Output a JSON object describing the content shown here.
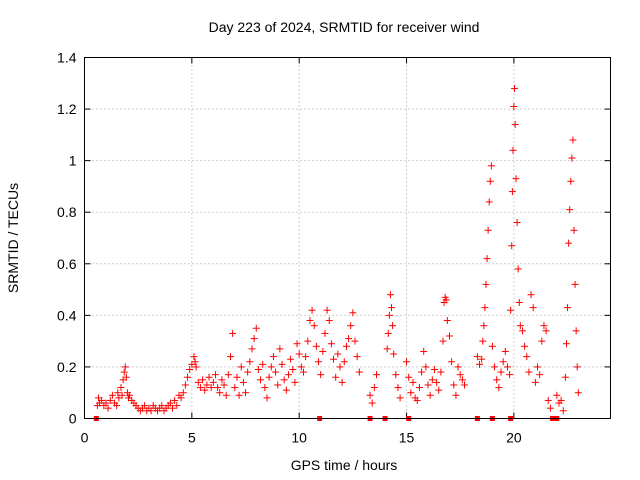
{
  "chart_data": {
    "type": "scatter",
    "title": "Day 223 of 2024, SRMTID for receiver wind",
    "xlabel": "GPS time / hours",
    "ylabel": "SRMTID / TECUs",
    "xlim": [
      0,
      24.5
    ],
    "ylim": [
      0,
      1.4
    ],
    "xticks": [
      0,
      5,
      10,
      15,
      20
    ],
    "xtick_labels": [
      "0",
      "5",
      "10",
      "15",
      "20"
    ],
    "yticks": [
      0,
      0.2,
      0.4,
      0.6,
      0.8,
      1.0,
      1.2,
      1.4
    ],
    "ytick_labels": [
      "0",
      "0.2",
      "0.4",
      "0.6",
      "0.8",
      "1",
      "1.2",
      "1.4"
    ],
    "grid": true,
    "marker": "plus",
    "color": "#ff0000",
    "series": [
      {
        "name": "SRMTID",
        "points": [
          [
            0.6,
            0.05
          ],
          [
            0.65,
            0.08
          ],
          [
            0.7,
            0.06
          ],
          [
            0.8,
            0.07
          ],
          [
            0.9,
            0.05
          ],
          [
            1.0,
            0.06
          ],
          [
            1.1,
            0.04
          ],
          [
            1.2,
            0.07
          ],
          [
            1.3,
            0.09
          ],
          [
            1.4,
            0.06
          ],
          [
            1.5,
            0.05
          ],
          [
            1.55,
            0.1
          ],
          [
            1.6,
            0.08
          ],
          [
            1.7,
            0.12
          ],
          [
            1.75,
            0.09
          ],
          [
            1.8,
            0.15
          ],
          [
            1.85,
            0.18
          ],
          [
            1.9,
            0.2
          ],
          [
            1.95,
            0.16
          ],
          [
            2.0,
            0.1
          ],
          [
            2.05,
            0.08
          ],
          [
            2.1,
            0.09
          ],
          [
            2.2,
            0.07
          ],
          [
            2.3,
            0.06
          ],
          [
            2.4,
            0.05
          ],
          [
            2.5,
            0.04
          ],
          [
            2.6,
            0.03
          ],
          [
            2.7,
            0.04
          ],
          [
            2.8,
            0.05
          ],
          [
            2.9,
            0.03
          ],
          [
            3.0,
            0.04
          ],
          [
            3.1,
            0.03
          ],
          [
            3.2,
            0.05
          ],
          [
            3.3,
            0.04
          ],
          [
            3.4,
            0.03
          ],
          [
            3.5,
            0.04
          ],
          [
            3.6,
            0.05
          ],
          [
            3.7,
            0.03
          ],
          [
            3.8,
            0.04
          ],
          [
            3.9,
            0.05
          ],
          [
            4.0,
            0.06
          ],
          [
            4.1,
            0.04
          ],
          [
            4.2,
            0.07
          ],
          [
            4.3,
            0.05
          ],
          [
            4.4,
            0.09
          ],
          [
            4.5,
            0.08
          ],
          [
            4.6,
            0.1
          ],
          [
            4.7,
            0.13
          ],
          [
            4.8,
            0.16
          ],
          [
            4.9,
            0.19
          ],
          [
            5.0,
            0.21
          ],
          [
            5.1,
            0.24
          ],
          [
            5.15,
            0.22
          ],
          [
            5.2,
            0.2
          ],
          [
            5.3,
            0.14
          ],
          [
            5.4,
            0.12
          ],
          [
            5.5,
            0.15
          ],
          [
            5.6,
            0.11
          ],
          [
            5.7,
            0.13
          ],
          [
            5.8,
            0.16
          ],
          [
            5.9,
            0.12
          ],
          [
            6.0,
            0.14
          ],
          [
            6.1,
            0.17
          ],
          [
            6.2,
            0.12
          ],
          [
            6.3,
            0.1
          ],
          [
            6.4,
            0.15
          ],
          [
            6.5,
            0.13
          ],
          [
            6.6,
            0.09
          ],
          [
            6.7,
            0.17
          ],
          [
            6.8,
            0.24
          ],
          [
            6.9,
            0.33
          ],
          [
            7.0,
            0.12
          ],
          [
            7.1,
            0.16
          ],
          [
            7.2,
            0.09
          ],
          [
            7.3,
            0.2
          ],
          [
            7.4,
            0.14
          ],
          [
            7.5,
            0.1
          ],
          [
            7.6,
            0.18
          ],
          [
            7.7,
            0.22
          ],
          [
            7.8,
            0.27
          ],
          [
            7.9,
            0.31
          ],
          [
            8.0,
            0.35
          ],
          [
            8.1,
            0.19
          ],
          [
            8.2,
            0.15
          ],
          [
            8.3,
            0.21
          ],
          [
            8.4,
            0.12
          ],
          [
            8.5,
            0.08
          ],
          [
            8.6,
            0.16
          ],
          [
            8.7,
            0.2
          ],
          [
            8.8,
            0.24
          ],
          [
            8.9,
            0.18
          ],
          [
            9.0,
            0.13
          ],
          [
            9.1,
            0.27
          ],
          [
            9.2,
            0.21
          ],
          [
            9.3,
            0.15
          ],
          [
            9.4,
            0.11
          ],
          [
            9.5,
            0.17
          ],
          [
            9.6,
            0.23
          ],
          [
            9.7,
            0.19
          ],
          [
            9.8,
            0.14
          ],
          [
            9.9,
            0.29
          ],
          [
            10.0,
            0.25
          ],
          [
            10.1,
            0.2
          ],
          [
            10.2,
            0.18
          ],
          [
            10.3,
            0.24
          ],
          [
            10.4,
            0.3
          ],
          [
            10.5,
            0.38
          ],
          [
            10.6,
            0.42
          ],
          [
            10.7,
            0.36
          ],
          [
            10.8,
            0.28
          ],
          [
            10.9,
            0.22
          ],
          [
            11.0,
            0.17
          ],
          [
            11.1,
            0.26
          ],
          [
            11.2,
            0.33
          ],
          [
            11.3,
            0.42
          ],
          [
            11.4,
            0.38
          ],
          [
            11.5,
            0.29
          ],
          [
            11.6,
            0.23
          ],
          [
            11.7,
            0.16
          ],
          [
            11.8,
            0.25
          ],
          [
            11.9,
            0.2
          ],
          [
            12.0,
            0.14
          ],
          [
            12.1,
            0.22
          ],
          [
            12.2,
            0.28
          ],
          [
            12.3,
            0.31
          ],
          [
            12.4,
            0.36
          ],
          [
            12.5,
            0.41
          ],
          [
            12.6,
            0.3
          ],
          [
            12.7,
            0.24
          ],
          [
            12.8,
            0.18
          ],
          [
            13.3,
            0.09
          ],
          [
            13.4,
            0.06
          ],
          [
            13.5,
            0.12
          ],
          [
            13.6,
            0.17
          ],
          [
            14.1,
            0.27
          ],
          [
            14.15,
            0.33
          ],
          [
            14.2,
            0.4
          ],
          [
            14.25,
            0.48
          ],
          [
            14.3,
            0.43
          ],
          [
            14.35,
            0.36
          ],
          [
            14.4,
            0.25
          ],
          [
            14.5,
            0.17
          ],
          [
            14.6,
            0.12
          ],
          [
            14.7,
            0.08
          ],
          [
            15.0,
            0.22
          ],
          [
            15.1,
            0.16
          ],
          [
            15.2,
            0.1
          ],
          [
            15.3,
            0.14
          ],
          [
            15.4,
            0.08
          ],
          [
            15.5,
            0.07
          ],
          [
            15.6,
            0.12
          ],
          [
            15.7,
            0.18
          ],
          [
            15.8,
            0.26
          ],
          [
            15.9,
            0.2
          ],
          [
            16.0,
            0.13
          ],
          [
            16.1,
            0.09
          ],
          [
            16.2,
            0.15
          ],
          [
            16.3,
            0.19
          ],
          [
            16.4,
            0.14
          ],
          [
            16.5,
            0.11
          ],
          [
            16.6,
            0.18
          ],
          [
            16.7,
            0.3
          ],
          [
            16.75,
            0.45
          ],
          [
            16.8,
            0.47
          ],
          [
            16.85,
            0.46
          ],
          [
            16.9,
            0.38
          ],
          [
            17.0,
            0.32
          ],
          [
            17.1,
            0.22
          ],
          [
            17.2,
            0.13
          ],
          [
            17.3,
            0.09
          ],
          [
            17.4,
            0.2
          ],
          [
            17.5,
            0.17
          ],
          [
            17.6,
            0.15
          ],
          [
            17.7,
            0.13
          ],
          [
            18.3,
            0.24
          ],
          [
            18.4,
            0.21
          ],
          [
            18.5,
            0.23
          ],
          [
            18.55,
            0.3
          ],
          [
            18.6,
            0.36
          ],
          [
            18.65,
            0.43
          ],
          [
            18.7,
            0.52
          ],
          [
            18.75,
            0.62
          ],
          [
            18.8,
            0.73
          ],
          [
            18.85,
            0.84
          ],
          [
            18.9,
            0.92
          ],
          [
            18.95,
            0.98
          ],
          [
            19.0,
            0.28
          ],
          [
            19.1,
            0.2
          ],
          [
            19.2,
            0.15
          ],
          [
            19.3,
            0.12
          ],
          [
            19.4,
            0.18
          ],
          [
            19.5,
            0.22
          ],
          [
            19.6,
            0.26
          ],
          [
            19.7,
            0.2
          ],
          [
            19.8,
            0.17
          ],
          [
            19.85,
            0.42
          ],
          [
            19.9,
            0.67
          ],
          [
            19.93,
            0.88
          ],
          [
            19.96,
            1.04
          ],
          [
            20.0,
            1.21
          ],
          [
            20.03,
            1.28
          ],
          [
            20.06,
            1.14
          ],
          [
            20.1,
            0.93
          ],
          [
            20.15,
            0.76
          ],
          [
            20.2,
            0.58
          ],
          [
            20.25,
            0.45
          ],
          [
            20.3,
            0.36
          ],
          [
            20.4,
            0.34
          ],
          [
            20.5,
            0.28
          ],
          [
            20.6,
            0.24
          ],
          [
            20.7,
            0.18
          ],
          [
            20.8,
            0.48
          ],
          [
            20.9,
            0.43
          ],
          [
            21.0,
            0.14
          ],
          [
            21.1,
            0.2
          ],
          [
            21.2,
            0.17
          ],
          [
            21.3,
            0.3
          ],
          [
            21.4,
            0.36
          ],
          [
            21.5,
            0.34
          ],
          [
            21.6,
            0.07
          ],
          [
            21.7,
            0.04
          ],
          [
            22.0,
            0.09
          ],
          [
            22.1,
            0.06
          ],
          [
            22.2,
            0.07
          ],
          [
            22.3,
            0.03
          ],
          [
            22.4,
            0.16
          ],
          [
            22.45,
            0.29
          ],
          [
            22.5,
            0.43
          ],
          [
            22.55,
            0.68
          ],
          [
            22.6,
            0.81
          ],
          [
            22.65,
            0.92
          ],
          [
            22.7,
            1.01
          ],
          [
            22.75,
            1.08
          ],
          [
            22.8,
            0.73
          ],
          [
            22.85,
            0.52
          ],
          [
            22.9,
            0.34
          ],
          [
            22.95,
            0.2
          ],
          [
            23.0,
            0.1
          ]
        ],
        "bottom_squares": [
          0.55,
          10.95,
          13.3,
          14.0,
          15.1,
          18.3,
          19.0,
          19.85,
          21.8,
          22.0
        ]
      }
    ]
  }
}
